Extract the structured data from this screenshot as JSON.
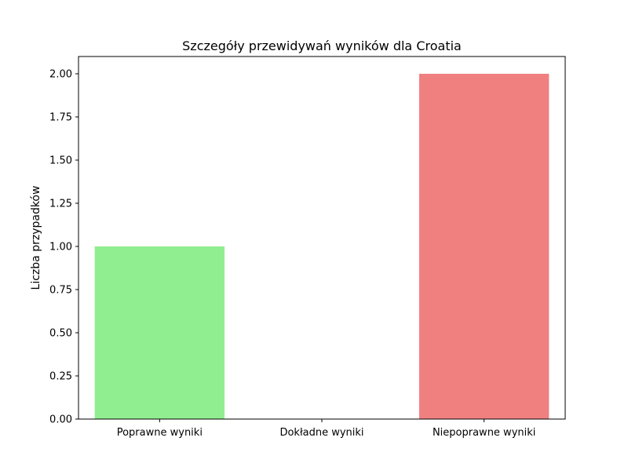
{
  "chart_data": {
    "type": "bar",
    "title": "Szczegóły przewidywań wyników dla Croatia",
    "xlabel": "",
    "ylabel": "Liczba przypadków",
    "categories": [
      "Poprawne wyniki",
      "Dokładne wyniki",
      "Niepoprawne wyniki"
    ],
    "values": [
      1,
      0,
      2
    ],
    "colors": [
      "#90ee90",
      "#87ceeb",
      "#f08080"
    ],
    "ylim": [
      0,
      2.1
    ],
    "yticks": [
      0.0,
      0.25,
      0.5,
      0.75,
      1.0,
      1.25,
      1.5,
      1.75,
      2.0
    ],
    "ytick_labels": [
      "0.00",
      "0.25",
      "0.50",
      "0.75",
      "1.00",
      "1.25",
      "1.50",
      "1.75",
      "2.00"
    ],
    "grid": false,
    "legend": "none"
  }
}
